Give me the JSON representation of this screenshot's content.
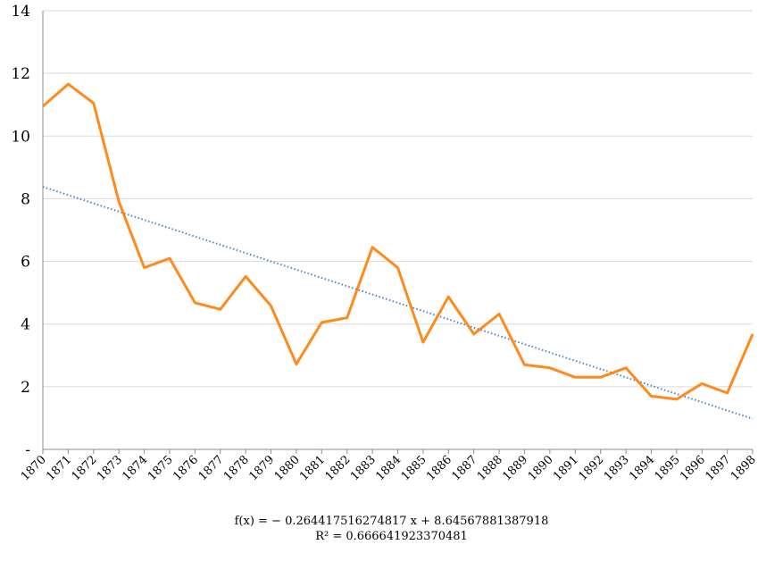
{
  "chart_data": {
    "type": "line",
    "title": "",
    "xlabel": "",
    "ylabel": "",
    "ylim": [
      0,
      14
    ],
    "y_tick_labels": [
      "-",
      "2",
      "4",
      "6",
      "8",
      "10",
      "12",
      "14"
    ],
    "grid": true,
    "categories": [
      "1870",
      "1871",
      "1872",
      "1873",
      "1874",
      "1875",
      "1876",
      "1877",
      "1878",
      "1879",
      "1880",
      "1881",
      "1882",
      "1883",
      "1884",
      "1885",
      "1886",
      "1887",
      "1888",
      "1889",
      "1890",
      "1891",
      "1892",
      "1893",
      "1894",
      "1895",
      "1896",
      "1897",
      "1898"
    ],
    "series": [
      {
        "color": "#ff8a1c",
        "values": [
          10.95,
          11.66,
          11.05,
          7.9,
          5.8,
          6.1,
          4.68,
          4.47,
          5.52,
          4.58,
          2.72,
          4.05,
          4.2,
          6.45,
          5.8,
          3.42,
          4.87,
          3.68,
          4.32,
          2.7,
          2.6,
          2.3,
          2.3,
          2.6,
          1.7,
          1.6,
          2.1,
          1.8,
          3.68
        ]
      }
    ],
    "trendline": {
      "type": "linear",
      "color": "#4a86c7",
      "slope": -0.264417516274817,
      "intercept": 8.64567881387918,
      "equation_text": "f(x) = − 0.264417516274817 x + 8.64567881387918",
      "r2_text": "R² = 0.666641923370481"
    }
  }
}
